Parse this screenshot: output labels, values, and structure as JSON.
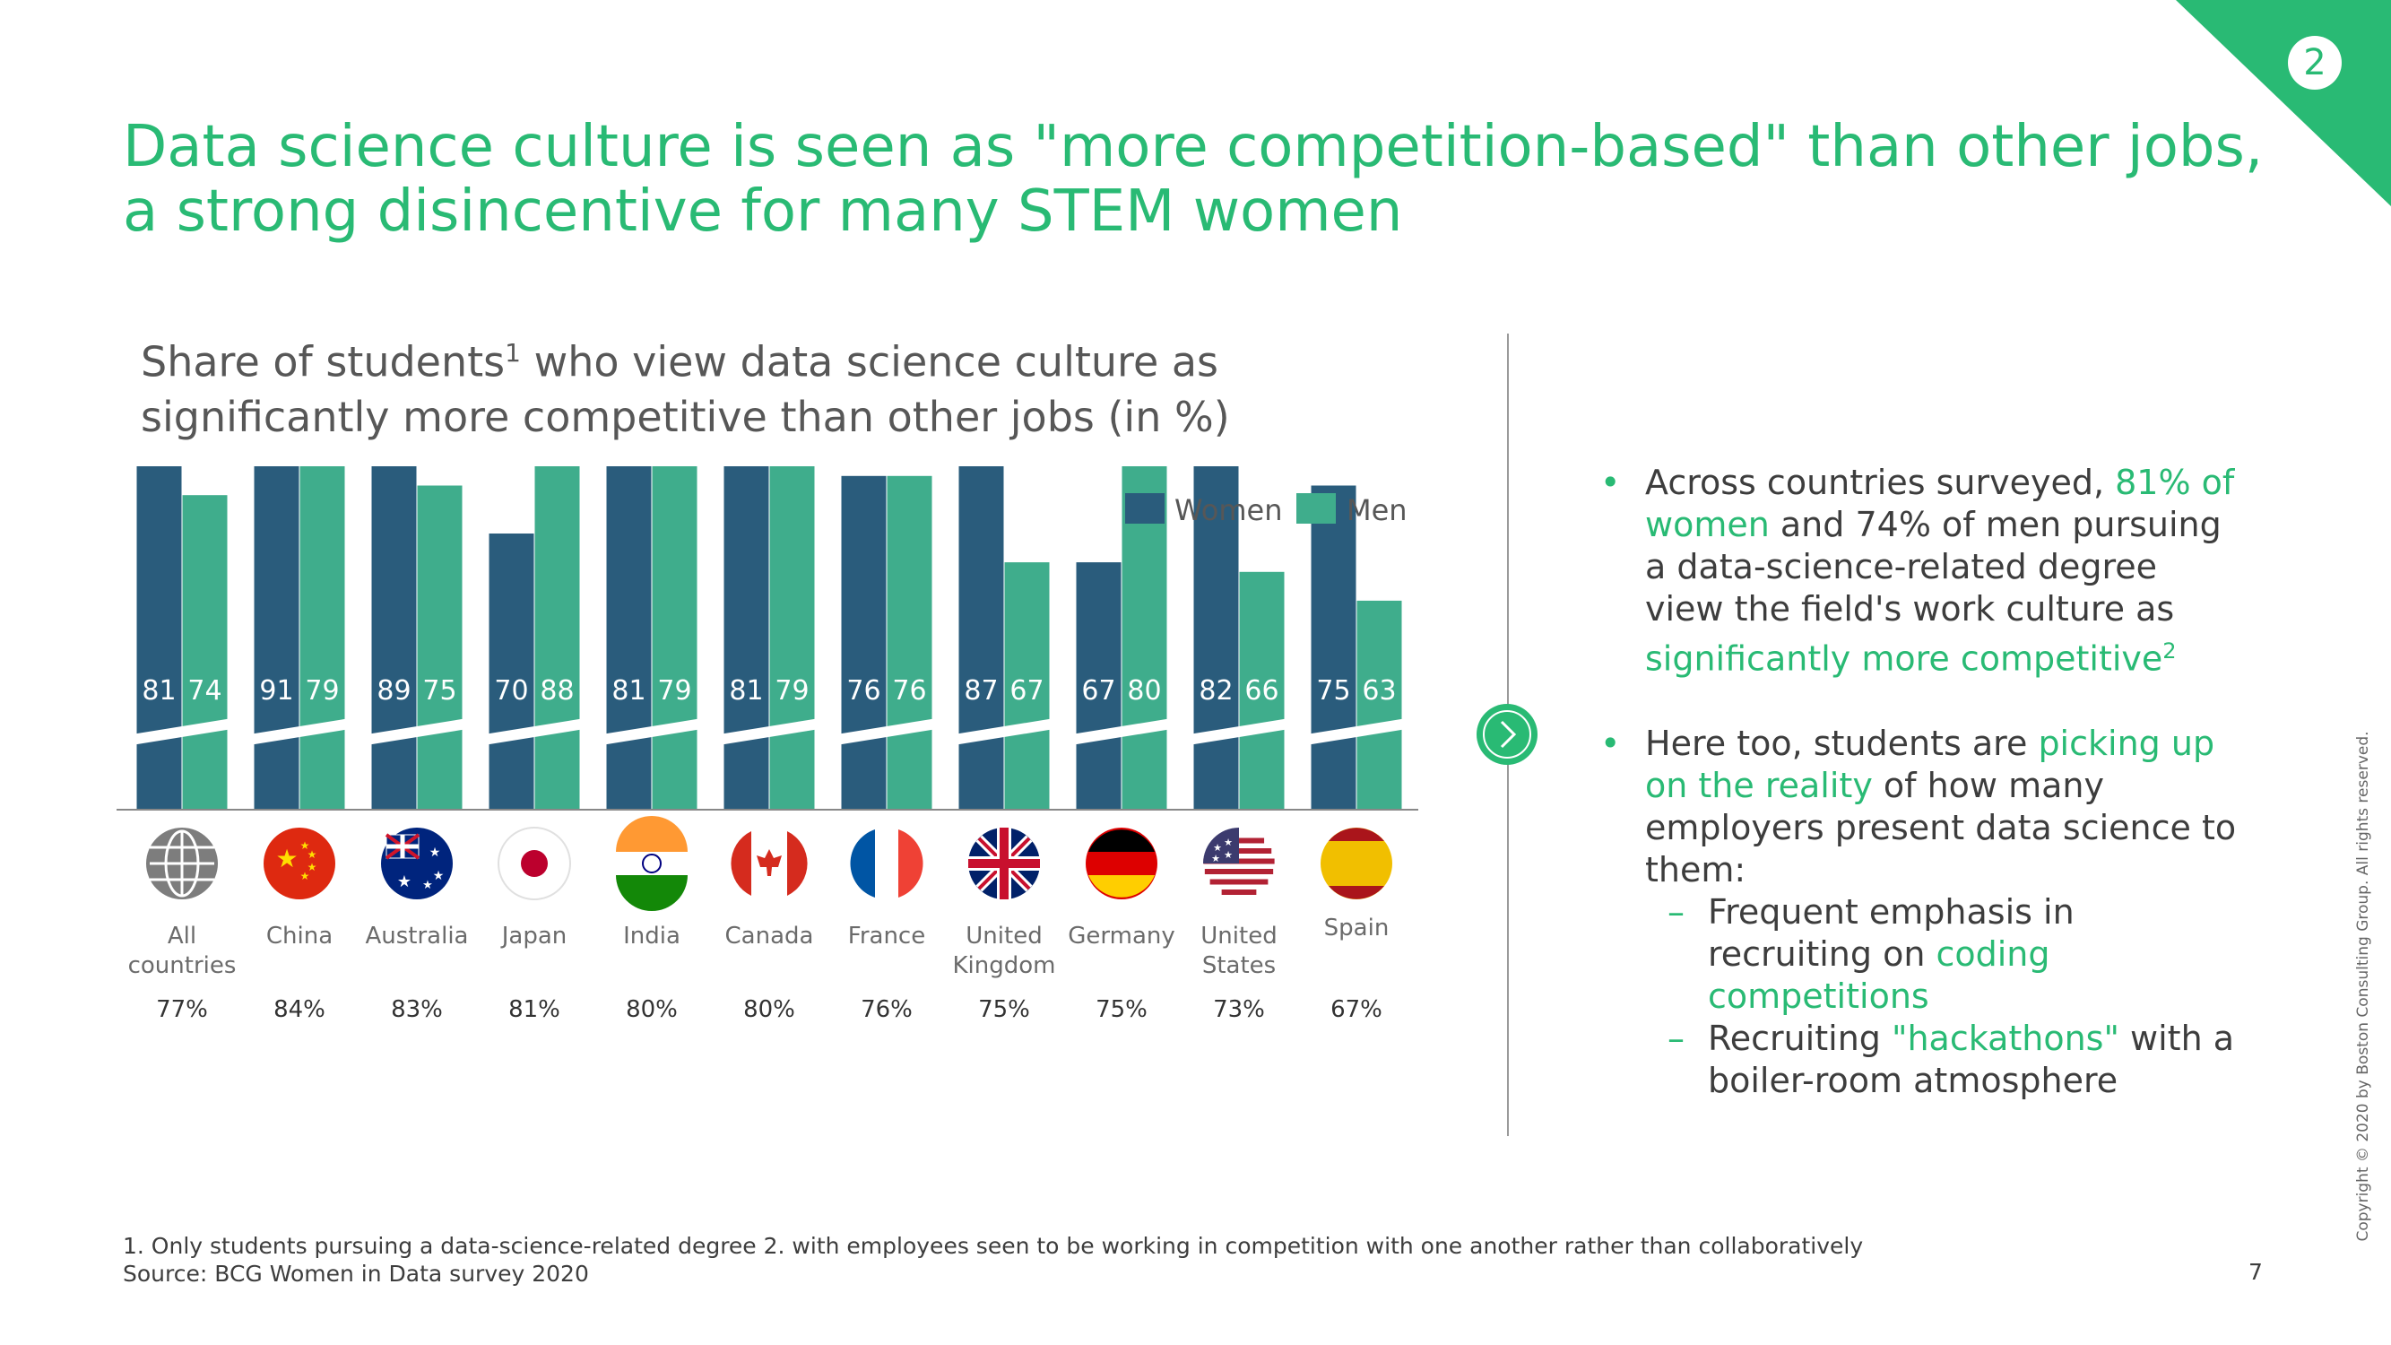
{
  "corner_badge": "2",
  "title": {
    "line1": "Data science culture is seen as \"more competition-based\" than other jobs,",
    "line2": "a strong disincentive for many STEM women"
  },
  "subtitle": {
    "line1_pre": "Share of students",
    "line1_sup": "1",
    "line1_post": " who view data science culture as",
    "line2": "significantly more competitive than other jobs (in %)"
  },
  "colors": {
    "accent": "#29ba74",
    "women": "#2a5c7c",
    "men": "#3fad8c"
  },
  "chart_data": {
    "type": "bar",
    "title": "Share of students who view data science culture as significantly more competitive than other jobs (in %)",
    "categories": [
      "All countries",
      "China",
      "Australia",
      "Japan",
      "India",
      "Canada",
      "France",
      "United Kingdom",
      "Germany",
      "United States",
      "Spain"
    ],
    "category_lines": [
      [
        "All",
        "countries"
      ],
      [
        "China"
      ],
      [
        "Australia"
      ],
      [
        "Japan"
      ],
      [
        "India"
      ],
      [
        "Canada"
      ],
      [
        "France"
      ],
      [
        "United",
        "Kingdom"
      ],
      [
        "Germany"
      ],
      [
        "United",
        "States"
      ],
      [
        "Spain"
      ]
    ],
    "flags": [
      "globe-icon",
      "china-flag-icon",
      "australia-flag-icon",
      "japan-flag-icon",
      "india-flag-icon",
      "canada-flag-icon",
      "france-flag-icon",
      "uk-flag-icon",
      "germany-flag-icon",
      "usa-flag-icon",
      "spain-flag-icon"
    ],
    "series": [
      {
        "name": "Women",
        "values": [
          81,
          91,
          89,
          70,
          81,
          81,
          76,
          87,
          67,
          82,
          75
        ]
      },
      {
        "name": "Men",
        "values": [
          74,
          79,
          75,
          88,
          79,
          79,
          76,
          67,
          80,
          66,
          63
        ]
      }
    ],
    "totals": [
      "77%",
      "84%",
      "83%",
      "81%",
      "80%",
      "80%",
      "76%",
      "75%",
      "75%",
      "73%",
      "67%"
    ],
    "axis_break": true,
    "legend": "top-right",
    "grid": false
  },
  "bullets": [
    {
      "segments": [
        {
          "text": "Across countries surveyed, ",
          "hl": false
        },
        {
          "text": "81% of women",
          "hl": true
        },
        {
          "text": " and 74% of men pursuing a data-science-related degree view the field's work culture as ",
          "hl": false
        },
        {
          "text": "significantly more competitive",
          "hl": true
        }
      ],
      "sup": "2"
    },
    {
      "segments": [
        {
          "text": "Here too, students are ",
          "hl": false
        },
        {
          "text": "picking up on the reality",
          "hl": true
        },
        {
          "text": " of how many employers present data science to them:",
          "hl": false
        }
      ],
      "subitems": [
        [
          {
            "text": "Frequent emphasis in recruiting on ",
            "hl": false
          },
          {
            "text": "coding competitions",
            "hl": true
          }
        ],
        [
          {
            "text": "Recruiting ",
            "hl": false
          },
          {
            "text": "\"hackathons\"",
            "hl": true
          },
          {
            "text": " with a boiler-room atmosphere",
            "hl": false
          }
        ]
      ]
    }
  ],
  "footnote": {
    "line1": "1. Only students pursuing a data-science-related degree  2. with employees seen to be working in competition with one another rather than collaboratively",
    "line2": "Source: BCG Women in Data survey 2020"
  },
  "page_number": "7",
  "copyright": "Copyright © 2020 by Boston Consulting Group. All rights reserved."
}
